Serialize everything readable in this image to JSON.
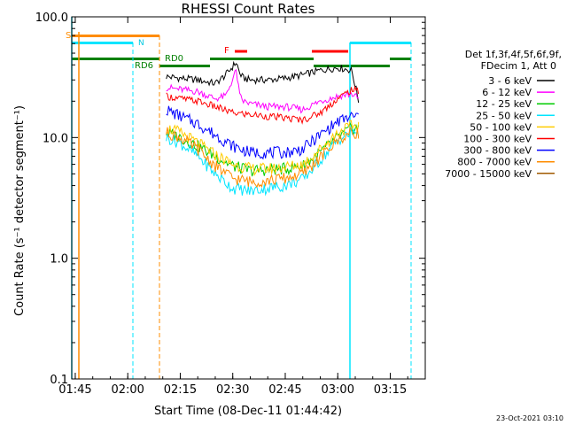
{
  "chart_data": {
    "type": "line",
    "title": "RHESSI Count Rates",
    "xlabel": "Start Time (08-Dec-11 01:44:42)",
    "ylabel": "Count Rate (s⁻¹ detector segment⁻¹)",
    "yscale": "log",
    "xlim": [
      "01:44",
      "03:25"
    ],
    "ylim": [
      0.1,
      100.0
    ],
    "x_ticks": [
      "01:45",
      "02:00",
      "02:15",
      "02:30",
      "02:45",
      "03:00",
      "03:15"
    ],
    "y_ticks": [
      "0.1",
      "1.0",
      "10.0",
      "100.0"
    ],
    "legend_header": [
      "Det 1f,3f,4f,5f,6f,9f,",
      "FDecim 1, Att 0"
    ],
    "legend_position": "right",
    "footer": "23-Oct-2021 03:10",
    "colors": {
      "orange": "#ff8c00",
      "green": "#008000",
      "cyan": "#00e5ff",
      "red": "#ff0000",
      "black": "#000000"
    },
    "series": [
      {
        "name": "3 - 6 keV",
        "color": "#000000",
        "x": [
          "02:11",
          "02:15",
          "02:20",
          "02:25",
          "02:28",
          "02:31",
          "02:32",
          "02:33",
          "02:35",
          "02:40",
          "02:45",
          "02:50",
          "02:55",
          "03:00",
          "03:04",
          "03:06"
        ],
        "y": [
          32,
          31,
          30,
          28,
          33,
          42,
          34,
          31,
          30,
          30,
          31,
          33,
          36,
          38,
          36,
          20
        ]
      },
      {
        "name": "6 - 12 keV",
        "color": "#ff00ff",
        "x": [
          "02:11",
          "02:15",
          "02:20",
          "02:25",
          "02:28",
          "02:31",
          "02:32",
          "02:33",
          "02:35",
          "02:40",
          "02:45",
          "02:50",
          "02:55",
          "03:00",
          "03:04",
          "03:06"
        ],
        "y": [
          26,
          25,
          24,
          21,
          22,
          36,
          22,
          20,
          19,
          18,
          18,
          17,
          20,
          22,
          23,
          21
        ]
      },
      {
        "name": "12 - 25 keV",
        "color": "#00cc00",
        "x": [
          "02:11",
          "02:15",
          "02:20",
          "02:25",
          "02:30",
          "02:35",
          "02:40",
          "02:45",
          "02:50",
          "02:55",
          "03:00",
          "03:04",
          "03:06"
        ],
        "y": [
          11,
          10,
          8.5,
          7.0,
          5.8,
          5.3,
          5.4,
          5.5,
          5.8,
          7.5,
          10,
          12,
          12
        ]
      },
      {
        "name": "25 - 50 keV",
        "color": "#00e5ff",
        "x": [
          "02:11",
          "02:15",
          "02:20",
          "02:25",
          "02:30",
          "02:35",
          "02:40",
          "02:45",
          "02:50",
          "02:55",
          "03:00",
          "03:04",
          "03:06"
        ],
        "y": [
          10,
          9.0,
          7.0,
          5.0,
          3.8,
          3.6,
          3.8,
          4.0,
          4.5,
          6.5,
          9.5,
          11,
          11
        ]
      },
      {
        "name": "50 - 100 keV",
        "color": "#ffcc00",
        "x": [
          "02:11",
          "02:15",
          "02:20",
          "02:25",
          "02:30",
          "02:35",
          "02:40",
          "02:45",
          "02:50",
          "02:55",
          "03:00",
          "03:04",
          "03:06"
        ],
        "y": [
          12,
          11,
          9.0,
          7.2,
          6.0,
          5.5,
          5.5,
          5.7,
          6.0,
          8.0,
          11,
          12.5,
          12.5
        ]
      },
      {
        "name": "100 - 300 keV",
        "color": "#ff0000",
        "x": [
          "02:11",
          "02:15",
          "02:20",
          "02:25",
          "02:30",
          "02:35",
          "02:40",
          "02:45",
          "02:50",
          "02:55",
          "03:00",
          "03:04",
          "03:06"
        ],
        "y": [
          22,
          21,
          20,
          18,
          16,
          15.5,
          15,
          14.5,
          14,
          16,
          21,
          25,
          24
        ]
      },
      {
        "name": "300 - 800 keV",
        "color": "#0000ff",
        "x": [
          "02:11",
          "02:15",
          "02:20",
          "02:25",
          "02:30",
          "02:35",
          "02:40",
          "02:45",
          "02:50",
          "02:55",
          "03:00",
          "03:04",
          "03:06"
        ],
        "y": [
          17,
          15,
          13,
          10.5,
          8.5,
          7.5,
          7.5,
          7.5,
          8.0,
          10.5,
          13.5,
          15,
          15
        ]
      },
      {
        "name": "800 - 7000 keV",
        "color": "#ff8c00",
        "x": [
          "02:11",
          "02:15",
          "02:20",
          "02:25",
          "02:30",
          "02:35",
          "02:40",
          "02:45",
          "02:50",
          "02:55",
          "03:00",
          "03:04",
          "03:06"
        ],
        "y": [
          11,
          10,
          8.0,
          5.8,
          4.6,
          4.3,
          4.4,
          4.6,
          5.0,
          6.8,
          9.5,
          11,
          11
        ]
      },
      {
        "name": "7000 - 15000 keV",
        "color": "#a05a00",
        "x": [],
        "y": []
      }
    ],
    "annotations": {
      "green_state_labels": [
        "RD0",
        "RD6"
      ],
      "orange_state_label": "S",
      "cyan_state_label": "N",
      "red_state_label": "F"
    }
  }
}
